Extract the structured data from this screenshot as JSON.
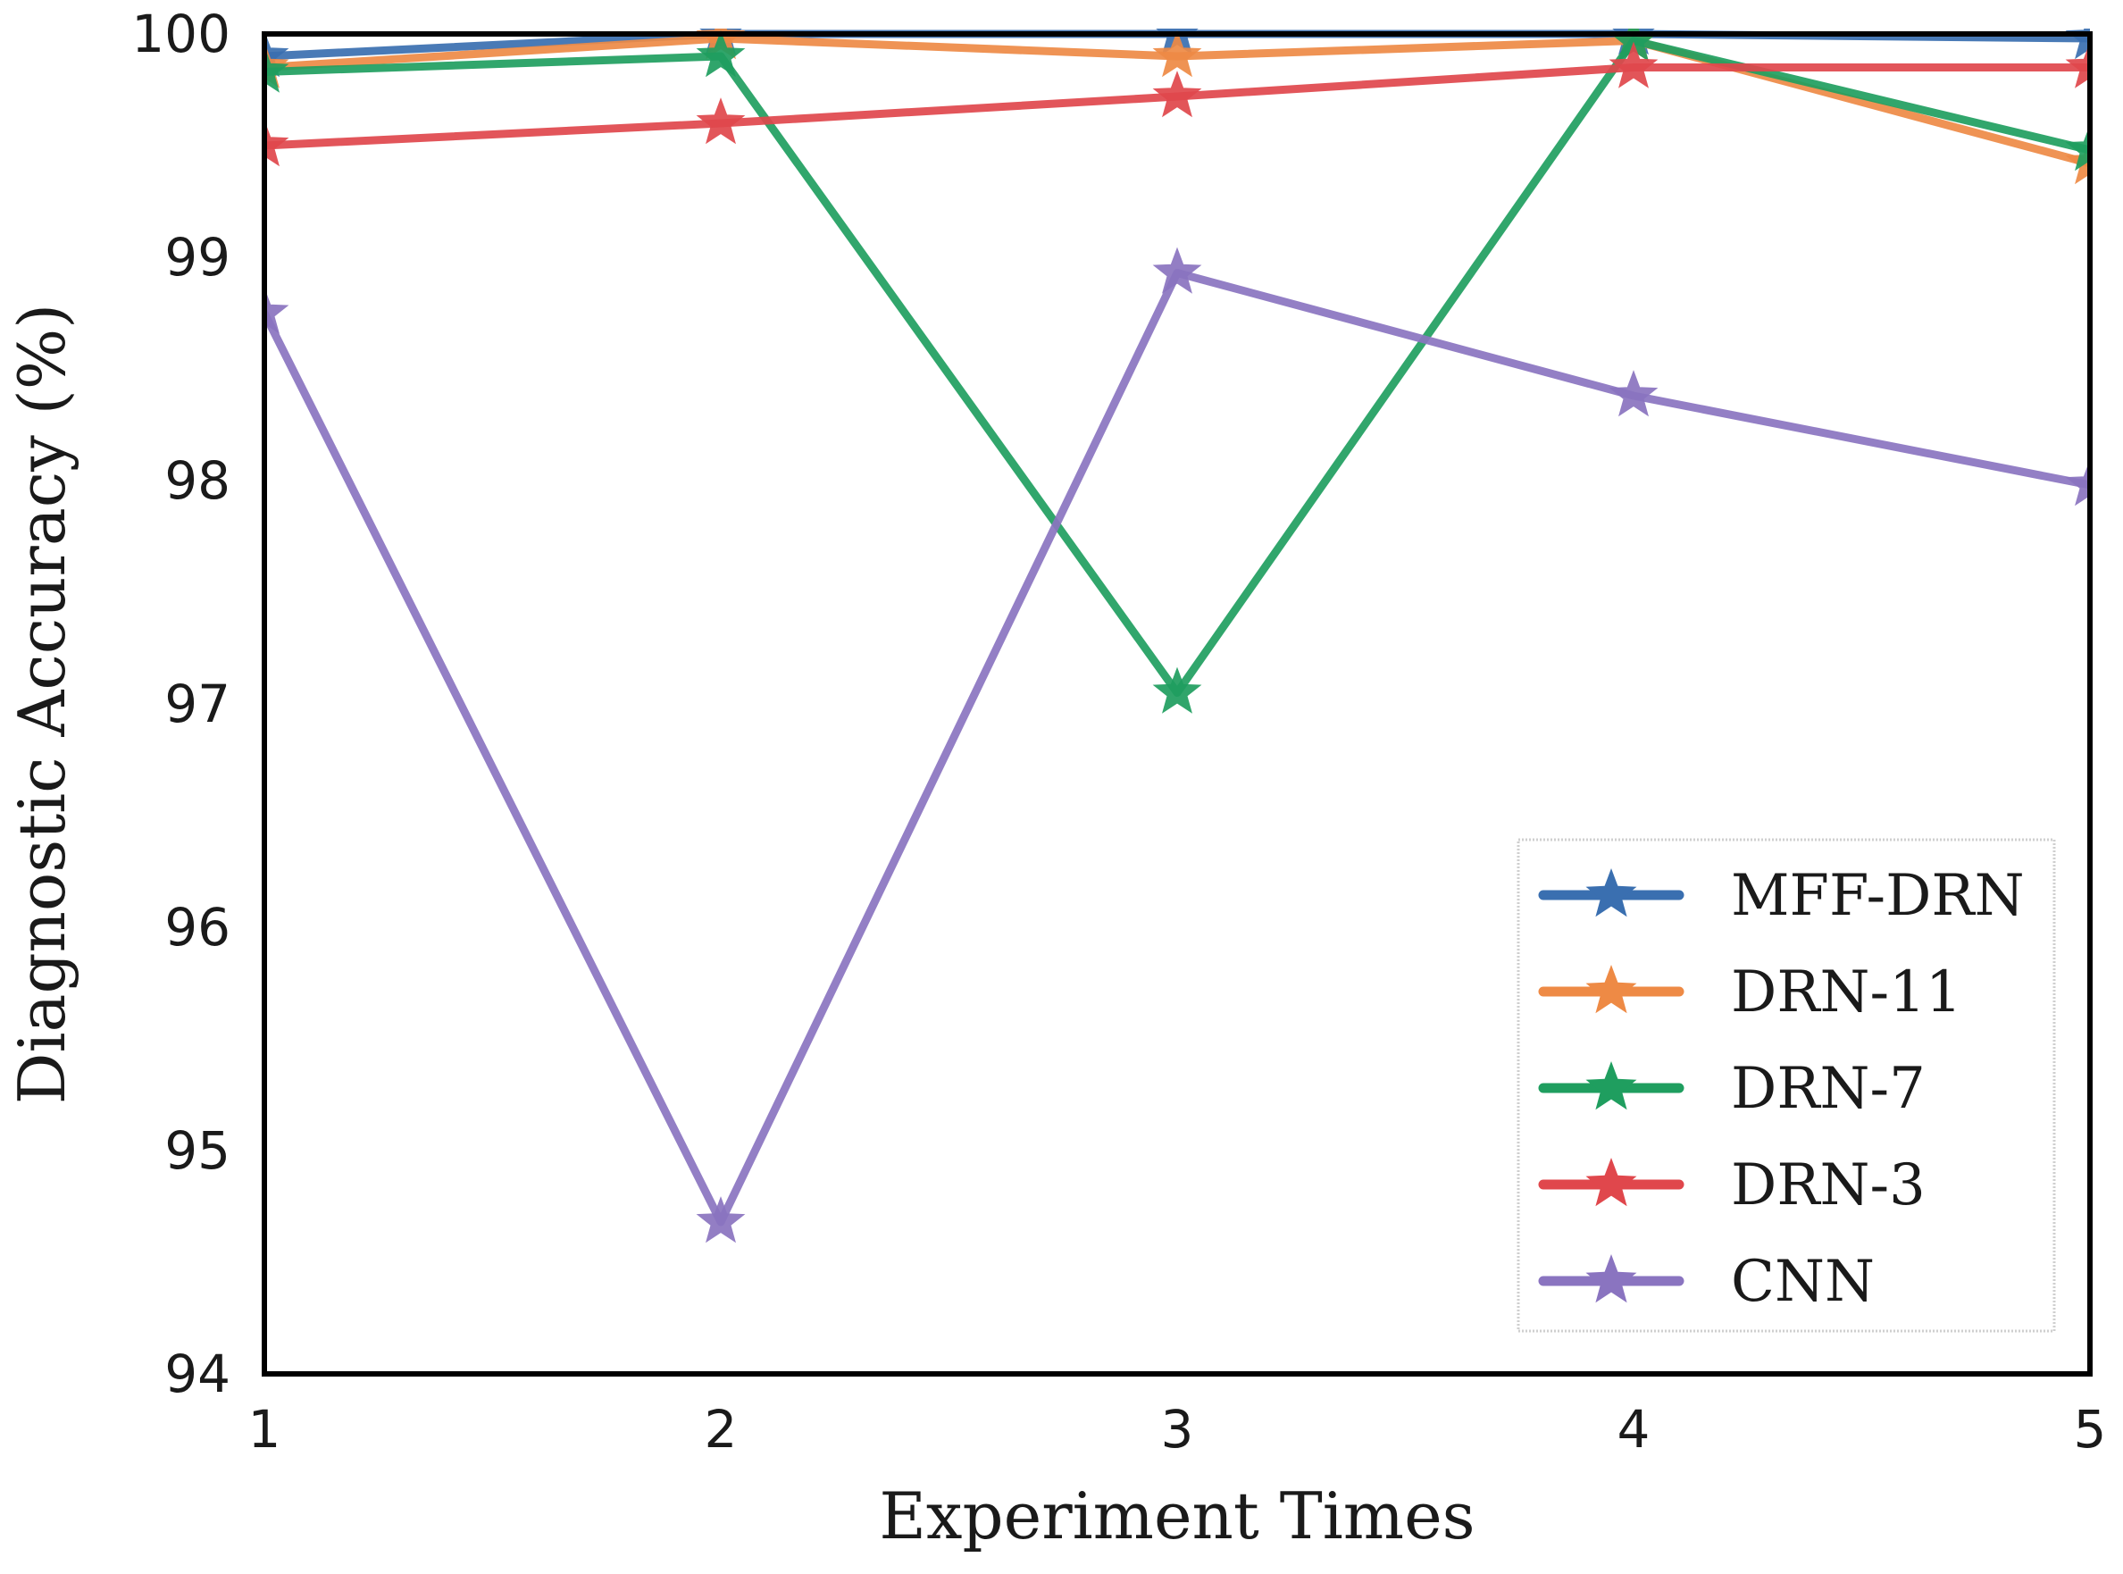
{
  "chart_data": {
    "type": "line",
    "title": "",
    "xlabel": "Experiment Times",
    "ylabel": "Diagnostic Accuracy (%)",
    "x": [
      1,
      2,
      3,
      4,
      5
    ],
    "xlim": [
      1,
      5
    ],
    "ylim": [
      94,
      100
    ],
    "xticks": [
      "1",
      "2",
      "3",
      "4",
      "5"
    ],
    "yticks": [
      "94",
      "95",
      "96",
      "97",
      "98",
      "99",
      "100"
    ],
    "grid": false,
    "legend_position": "lower-right",
    "marker": "star",
    "series": [
      {
        "name": "MFF-DRN",
        "color": "#3a6fb0",
        "values": [
          99.9,
          100,
          100,
          100,
          99.98
        ]
      },
      {
        "name": "DRN-11",
        "color": "#ee8a45",
        "values": [
          99.85,
          99.98,
          99.9,
          99.97,
          99.42
        ]
      },
      {
        "name": "DRN-7",
        "color": "#1f9e5f",
        "values": [
          99.83,
          99.9,
          97.05,
          99.97,
          99.48
        ]
      },
      {
        "name": "DRN-3",
        "color": "#e0474c",
        "values": [
          99.5,
          99.6,
          99.72,
          99.85,
          99.85
        ]
      },
      {
        "name": "CNN",
        "color": "#8a74c0",
        "values": [
          98.75,
          94.68,
          98.93,
          98.38,
          97.98
        ]
      }
    ]
  }
}
